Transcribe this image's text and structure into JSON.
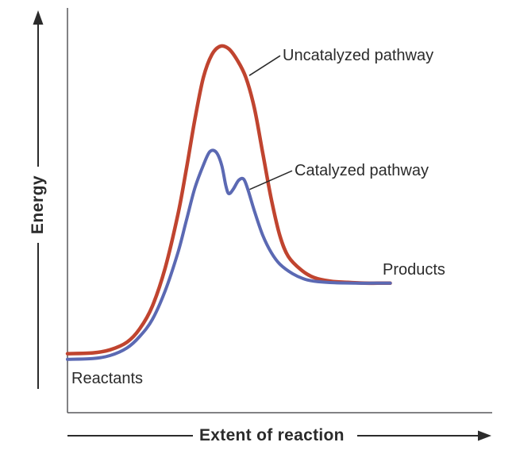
{
  "figure": {
    "energy_axis_label": "Energy",
    "x_axis_label": "Extent of reaction",
    "labels": {
      "uncatalyzed": "Uncatalyzed pathway",
      "catalyzed": "Catalyzed pathway",
      "products": "Products",
      "reactants": "Reactants"
    }
  },
  "colors": {
    "uncatalyzed": "#c0442f",
    "catalyzed": "#5b69b3",
    "axis": "#58595b",
    "text": "#2b2b2b"
  },
  "chart_data": {
    "type": "line",
    "title": "",
    "xlabel": "Extent of reaction",
    "ylabel": "Energy",
    "xlim": [
      0,
      100
    ],
    "ylim": [
      0,
      100
    ],
    "grid": false,
    "legend": "none",
    "axis_style": "unlabeled axes with direction arrows, arbitrary units",
    "key_values": {
      "reactants_level": 15,
      "products_level": 34,
      "uncatalyzed_peak": 96,
      "catalyzed_peak_1": 68.5,
      "catalyzed_dip": 57.5,
      "catalyzed_peak_2": 61.3
    },
    "series": [
      {
        "name": "Uncatalyzed pathway",
        "color": "#c0442f",
        "points": [
          [
            0,
            15.5
          ],
          [
            6,
            15.7
          ],
          [
            10,
            16.5
          ],
          [
            14,
            18.5
          ],
          [
            17,
            22
          ],
          [
            20,
            28
          ],
          [
            23,
            38
          ],
          [
            26,
            52
          ],
          [
            28,
            64
          ],
          [
            30,
            77
          ],
          [
            32,
            88
          ],
          [
            34,
            94
          ],
          [
            36,
            96.2
          ],
          [
            38,
            95.5
          ],
          [
            40,
            92.5
          ],
          [
            42,
            88
          ],
          [
            44,
            80
          ],
          [
            46,
            68
          ],
          [
            48,
            56
          ],
          [
            50,
            46.5
          ],
          [
            52,
            41
          ],
          [
            55,
            37.5
          ],
          [
            58,
            35.5
          ],
          [
            62,
            34.5
          ],
          [
            66,
            34.2
          ],
          [
            70,
            34
          ],
          [
            73,
            34
          ],
          [
            76,
            34
          ]
        ]
      },
      {
        "name": "Catalyzed pathway",
        "color": "#5b69b3",
        "points": [
          [
            0,
            14
          ],
          [
            6,
            14.2
          ],
          [
            10,
            15
          ],
          [
            14,
            17
          ],
          [
            17,
            20
          ],
          [
            20,
            24.5
          ],
          [
            23,
            32
          ],
          [
            26,
            42
          ],
          [
            28,
            50.5
          ],
          [
            30,
            59
          ],
          [
            32,
            65
          ],
          [
            33.5,
            68.5
          ],
          [
            35,
            68.4
          ],
          [
            36.3,
            65
          ],
          [
            37.3,
            59.5
          ],
          [
            38,
            57.5
          ],
          [
            39,
            58.6
          ],
          [
            40.3,
            61
          ],
          [
            41.5,
            61.3
          ],
          [
            42.5,
            58.5
          ],
          [
            44,
            53
          ],
          [
            46,
            46.5
          ],
          [
            48,
            42
          ],
          [
            50,
            39
          ],
          [
            53,
            36.5
          ],
          [
            56,
            35
          ],
          [
            59,
            34.4
          ],
          [
            63,
            34.1
          ],
          [
            68,
            34
          ],
          [
            72,
            34
          ],
          [
            76,
            34
          ]
        ]
      }
    ],
    "annotations": [
      {
        "for": "uncatalyzed",
        "text": "Uncatalyzed pathway",
        "line_from": [
          50.1,
          93.7
        ],
        "line_to": [
          42.8,
          88.5
        ]
      },
      {
        "for": "catalyzed",
        "text": "Catalyzed pathway",
        "line_from": [
          52.9,
          63.5
        ],
        "line_to": [
          42.9,
          58.6
        ]
      }
    ]
  }
}
